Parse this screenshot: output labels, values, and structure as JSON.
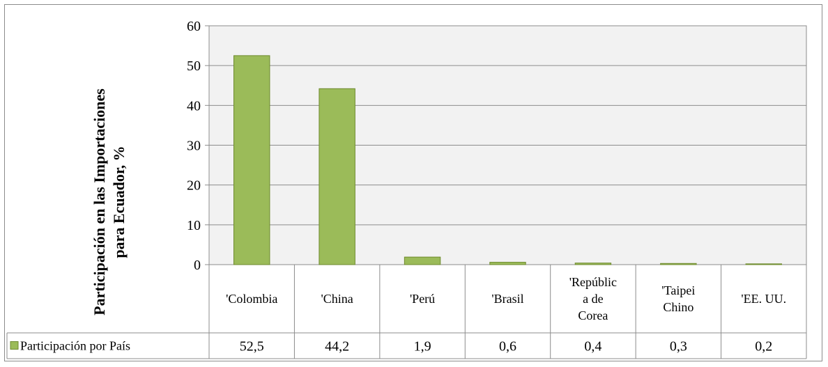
{
  "chart_data": {
    "type": "bar",
    "ylabel_lines": [
      "Participación en las Importaciones",
      "para Ecuador, %"
    ],
    "ylim": [
      0,
      60
    ],
    "yticks": [
      0,
      10,
      20,
      30,
      40,
      50,
      60
    ],
    "grid": true,
    "categories": [
      [
        "'Colombia"
      ],
      [
        "'China"
      ],
      [
        "'Perú"
      ],
      [
        "'Brasil"
      ],
      [
        "'Repúblic",
        "a de",
        "Corea"
      ],
      [
        "'Taipei",
        "Chino"
      ],
      [
        "'EE. UU."
      ]
    ],
    "series": [
      {
        "name": "Participación por País",
        "values": [
          52.5,
          44.2,
          1.9,
          0.6,
          0.4,
          0.3,
          0.2
        ],
        "labels": [
          "52,5",
          "44,2",
          "1,9",
          "0,6",
          "0,4",
          "0,3",
          "0,2"
        ],
        "color": "#9bbb59",
        "stroke": "#6e8a2e"
      }
    ],
    "plot_background": "#f2f2f2",
    "data_table": true
  }
}
